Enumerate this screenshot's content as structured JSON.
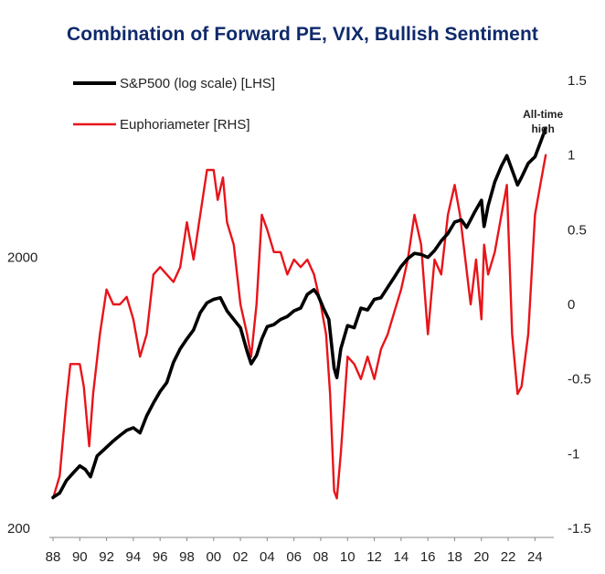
{
  "chart_data": {
    "type": "line",
    "title": "Combination of Forward PE, VIX, Bullish Sentiment",
    "x_ticks": [
      "88",
      "90",
      "92",
      "94",
      "96",
      "98",
      "00",
      "02",
      "04",
      "06",
      "08",
      "10",
      "12",
      "14",
      "16",
      "18",
      "20",
      "22",
      "24"
    ],
    "x_range": [
      1988,
      2025
    ],
    "y_left": {
      "scale": "log",
      "range": [
        200,
        9000
      ],
      "ticks": [
        "2000",
        "200"
      ]
    },
    "y_right": {
      "scale": "linear",
      "range": [
        -1.5,
        1.5
      ],
      "ticks": [
        "1.5",
        "1",
        "0.5",
        "0",
        "-0.5",
        "-1",
        "-1.5"
      ]
    },
    "legend_placement": "top-left",
    "annotation": {
      "text_lines": [
        "All-time",
        "high"
      ],
      "x": 2024.6,
      "y_right": 1.25
    },
    "series": [
      {
        "name": "S&P500 (log scale) [LHS]",
        "axis": "left",
        "color": "#000000",
        "x": [
          1988.0,
          1988.5,
          1989.0,
          1989.5,
          1990.0,
          1990.4,
          1990.8,
          1991.3,
          1991.8,
          1992.5,
          1993.0,
          1993.5,
          1994.0,
          1994.5,
          1995.0,
          1995.5,
          1996.0,
          1996.5,
          1997.0,
          1997.5,
          1998.0,
          1998.5,
          1999.0,
          1999.5,
          2000.0,
          2000.5,
          2001.0,
          2001.5,
          2002.0,
          2002.5,
          2002.8,
          2003.2,
          2003.6,
          2004.0,
          2004.5,
          2005.0,
          2005.5,
          2006.0,
          2006.5,
          2007.0,
          2007.5,
          2007.8,
          2008.2,
          2008.6,
          2009.0,
          2009.2,
          2009.5,
          2010.0,
          2010.5,
          2011.0,
          2011.5,
          2012.0,
          2012.5,
          2013.0,
          2013.5,
          2014.0,
          2014.5,
          2015.0,
          2015.5,
          2016.0,
          2016.5,
          2017.0,
          2017.5,
          2018.0,
          2018.5,
          2018.9,
          2019.5,
          2020.0,
          2020.2,
          2020.5,
          2021.0,
          2021.5,
          2021.9,
          2022.3,
          2022.7,
          2023.0,
          2023.5,
          2024.0,
          2024.4,
          2024.8
        ],
        "values": [
          260,
          270,
          300,
          320,
          340,
          330,
          310,
          370,
          390,
          420,
          440,
          460,
          470,
          450,
          520,
          580,
          640,
          690,
          820,
          920,
          1000,
          1080,
          1250,
          1360,
          1400,
          1420,
          1270,
          1180,
          1100,
          900,
          810,
          870,
          1000,
          1110,
          1130,
          1180,
          1210,
          1270,
          1300,
          1460,
          1520,
          1450,
          1300,
          1180,
          780,
          720,
          920,
          1120,
          1100,
          1300,
          1280,
          1400,
          1420,
          1550,
          1690,
          1850,
          1980,
          2070,
          2050,
          2000,
          2120,
          2300,
          2450,
          2700,
          2750,
          2580,
          2940,
          3250,
          2600,
          3100,
          3800,
          4350,
          4750,
          4200,
          3700,
          3950,
          4450,
          4700,
          5300,
          6000
        ]
      },
      {
        "name": "Euphoriameter [RHS]",
        "axis": "right",
        "color": "#e8141a",
        "x": [
          1988.0,
          1988.5,
          1989.0,
          1989.3,
          1989.7,
          1990.0,
          1990.3,
          1990.7,
          1991.0,
          1991.5,
          1992.0,
          1992.5,
          1993.0,
          1993.5,
          1994.0,
          1994.5,
          1995.0,
          1995.5,
          1996.0,
          1996.5,
          1997.0,
          1997.5,
          1998.0,
          1998.5,
          1999.0,
          1999.5,
          2000.0,
          2000.3,
          2000.7,
          2001.0,
          2001.5,
          2002.0,
          2002.5,
          2002.8,
          2003.2,
          2003.6,
          2004.0,
          2004.5,
          2005.0,
          2005.5,
          2006.0,
          2006.5,
          2007.0,
          2007.5,
          2008.0,
          2008.4,
          2008.7,
          2009.0,
          2009.2,
          2009.5,
          2010.0,
          2010.5,
          2011.0,
          2011.5,
          2012.0,
          2012.5,
          2013.0,
          2013.5,
          2014.0,
          2014.5,
          2015.0,
          2015.5,
          2016.0,
          2016.5,
          2017.0,
          2017.5,
          2018.0,
          2018.4,
          2018.8,
          2019.2,
          2019.6,
          2020.0,
          2020.2,
          2020.5,
          2021.0,
          2021.5,
          2021.9,
          2022.3,
          2022.7,
          2023.0,
          2023.5,
          2024.0,
          2024.4,
          2024.8
        ],
        "values": [
          -1.3,
          -1.15,
          -0.65,
          -0.4,
          -0.4,
          -0.4,
          -0.55,
          -0.95,
          -0.6,
          -0.2,
          0.1,
          0.0,
          0.0,
          0.05,
          -0.1,
          -0.35,
          -0.2,
          0.2,
          0.25,
          0.2,
          0.15,
          0.25,
          0.55,
          0.3,
          0.6,
          0.9,
          0.9,
          0.7,
          0.85,
          0.55,
          0.4,
          0.0,
          -0.2,
          -0.35,
          0.0,
          0.6,
          0.5,
          0.35,
          0.35,
          0.2,
          0.3,
          0.25,
          0.3,
          0.2,
          0.0,
          -0.2,
          -0.6,
          -1.25,
          -1.3,
          -1.0,
          -0.35,
          -0.4,
          -0.5,
          -0.35,
          -0.5,
          -0.3,
          -0.2,
          -0.05,
          0.1,
          0.3,
          0.6,
          0.4,
          -0.2,
          0.3,
          0.2,
          0.6,
          0.8,
          0.6,
          0.3,
          0.0,
          0.3,
          -0.1,
          0.4,
          0.2,
          0.35,
          0.6,
          0.8,
          -0.2,
          -0.6,
          -0.55,
          -0.2,
          0.6,
          0.8,
          1.0
        ]
      }
    ]
  }
}
